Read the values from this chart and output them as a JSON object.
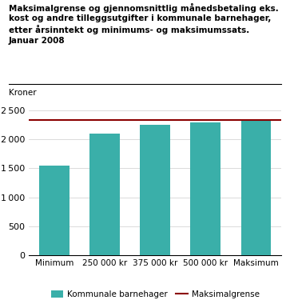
{
  "title_lines": [
    "Maksimalgrense og gjennomsnittlig månedsbetaling eks.",
    "kost og andre tilleggsutgifter i kommunale barnehager,",
    "etter årsinntekt og minimums- og maksimumssats.",
    "Januar 2008"
  ],
  "ylabel": "Kroner",
  "categories": [
    "Minimum",
    "250 000 kr",
    "375 000 kr",
    "500 000 kr",
    "Maksimum"
  ],
  "bar_values": [
    1550,
    2105,
    2250,
    2300,
    2320
  ],
  "bar_color": "#3aafa9",
  "maksimalgrense_value": 2330,
  "maksimalgrense_color": "#8b0000",
  "ylim": [
    0,
    2700
  ],
  "yticks": [
    0,
    500,
    1000,
    1500,
    2000,
    2500
  ],
  "legend_bar_label": "Kommunale barnehager",
  "legend_line_label": "Maksimalgrense",
  "background_color": "#ffffff",
  "grid_color": "#cccccc"
}
